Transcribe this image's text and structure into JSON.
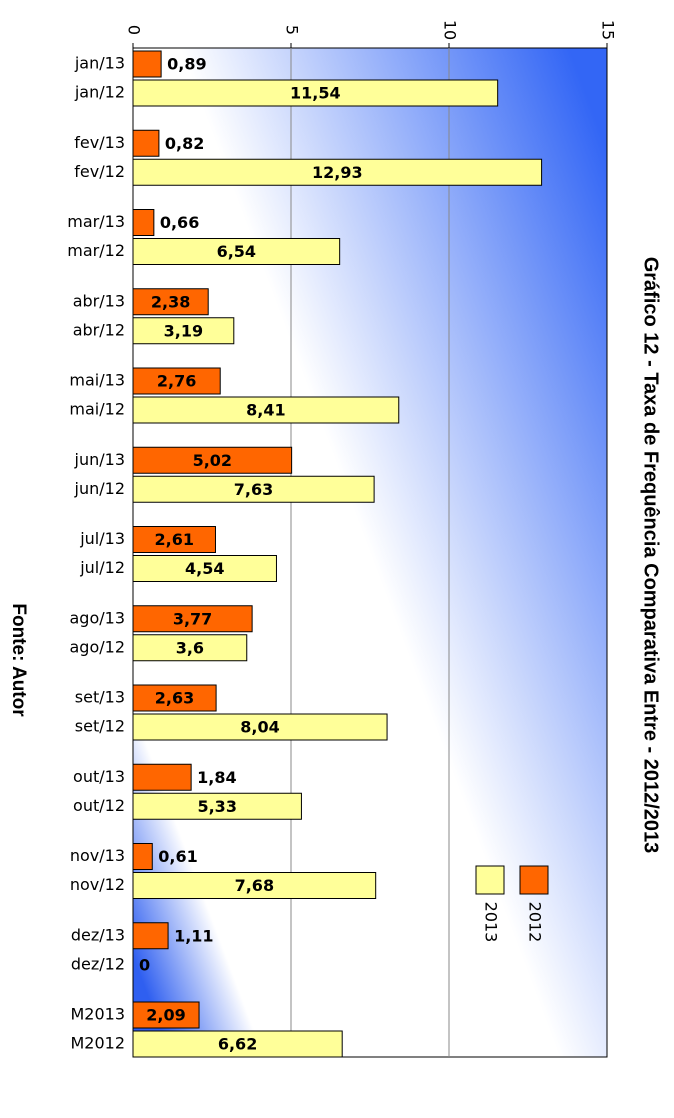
{
  "chart_data": {
    "type": "bar",
    "orientation": "horizontal",
    "title": "Gráfico 12 - Taxa de Frequência Comparativa Entre - 2012/2013",
    "source": "Fonte: Autor",
    "categories": [
      "jan/13",
      "jan/12",
      "fev/13",
      "fev/12",
      "mar/13",
      "mar/12",
      "abr/13",
      "abr/12",
      "mai/13",
      "mai/12",
      "jun/13",
      "jun/12",
      "jul/13",
      "jul/12",
      "ago/13",
      "ago/12",
      "set/13",
      "set/12",
      "out/13",
      "out/12",
      "nov/13",
      "nov/12",
      "dez/13",
      "dez/12",
      "M2013",
      "M2012"
    ],
    "series": [
      {
        "name": "2012",
        "color": "#ff6600",
        "values": [
          0.89,
          null,
          0.82,
          null,
          0.66,
          null,
          2.38,
          null,
          2.76,
          null,
          5.02,
          null,
          2.61,
          null,
          3.77,
          null,
          2.63,
          null,
          1.84,
          null,
          0.61,
          null,
          1.11,
          null,
          2.09,
          null
        ],
        "value_labels": [
          "0,89",
          null,
          "0,82",
          null,
          "0,66",
          null,
          "2,38",
          null,
          "2,76",
          null,
          "5,02",
          null,
          "2,61",
          null,
          "3,77",
          null,
          "2,63",
          null,
          "1,84",
          null,
          "0,61",
          null,
          "1,11",
          null,
          "2,09",
          null
        ]
      },
      {
        "name": "2013",
        "color": "#ffff99",
        "values": [
          null,
          11.54,
          null,
          12.93,
          null,
          6.54,
          null,
          3.19,
          null,
          8.41,
          null,
          7.63,
          null,
          4.54,
          null,
          3.6,
          null,
          8.04,
          null,
          5.33,
          null,
          7.68,
          null,
          0,
          null,
          6.62
        ],
        "value_labels": [
          null,
          "11,54",
          null,
          "12,93",
          null,
          "6,54",
          null,
          "3,19",
          null,
          "8,41",
          null,
          "7,63",
          null,
          "4,54",
          null,
          "3,6",
          null,
          "8,04",
          null,
          "5,33",
          null,
          "7,68",
          null,
          "0",
          null,
          "6,62"
        ]
      }
    ],
    "xlim": [
      0,
      15
    ],
    "xticks": [
      0,
      5,
      10,
      15
    ],
    "grid": true
  }
}
